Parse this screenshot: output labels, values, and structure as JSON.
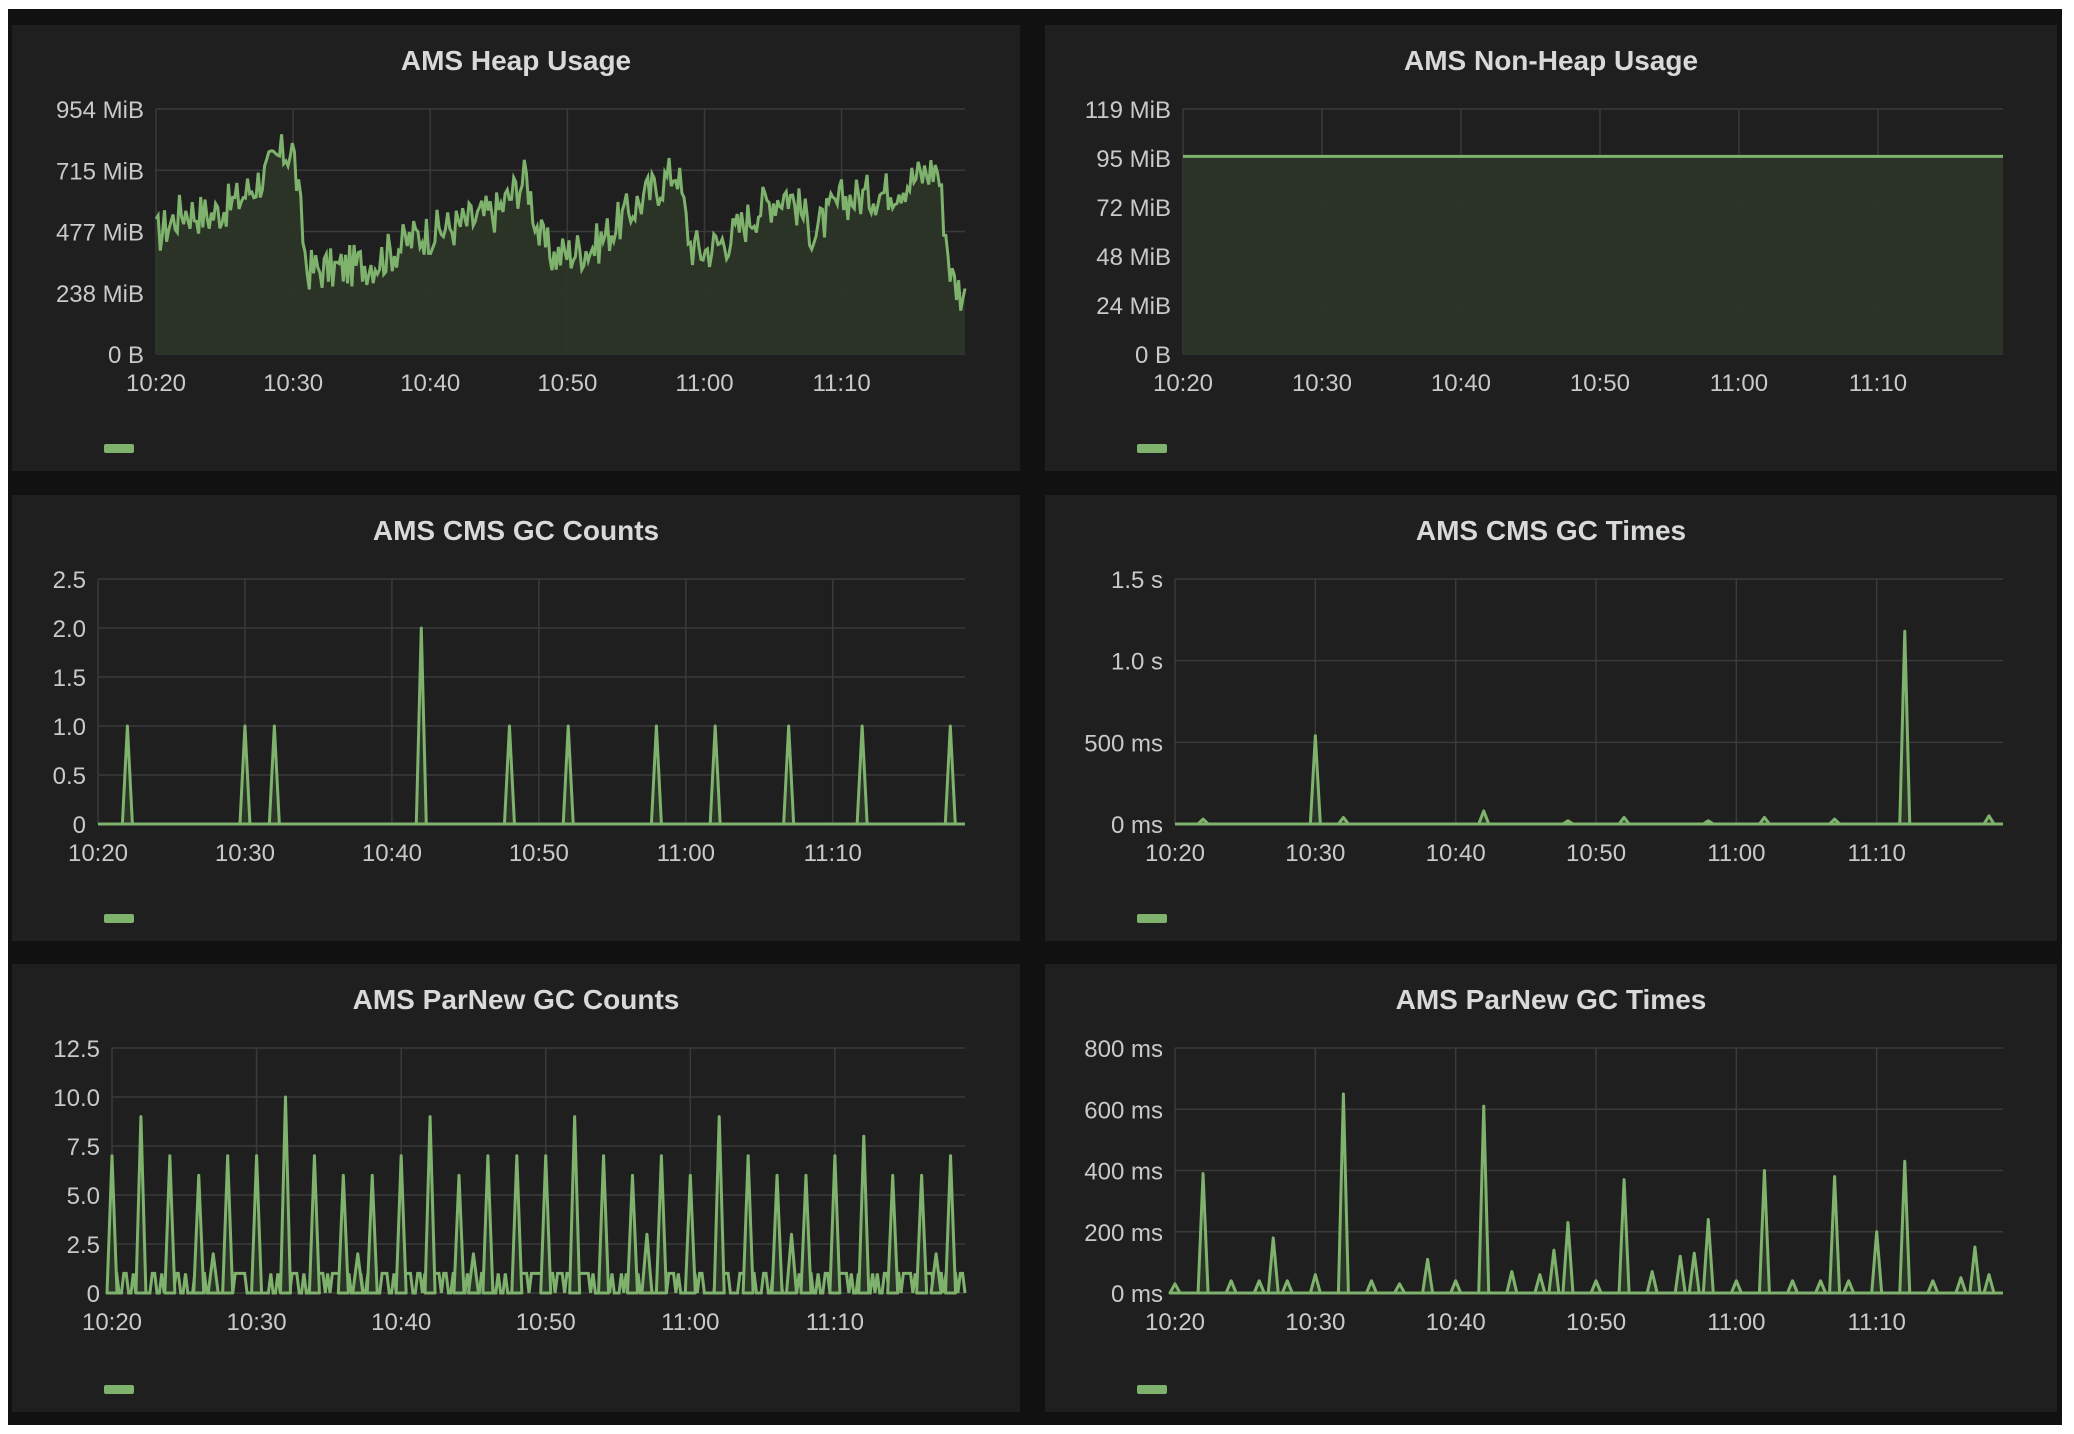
{
  "colors": {
    "background": "#111111",
    "panel": "#1f1f1f",
    "grid": "#3a3a3a",
    "text": "#d8d9da",
    "tick_text": "#c8c9ca",
    "series": "#7eb26d",
    "fill": "#2b3527"
  },
  "chart_data": [
    {
      "type": "area",
      "title": "AMS Heap Usage",
      "unit": "MiB",
      "x_ticks": [
        "10:20",
        "10:30",
        "10:40",
        "10:50",
        "11:00",
        "11:10"
      ],
      "x_range": [
        "10:20",
        "11:19"
      ],
      "y_ticks": [
        "0 B",
        "238 MiB",
        "477 MiB",
        "715 MiB",
        "954 MiB"
      ],
      "ylim": [
        0,
        954
      ],
      "grid": true,
      "legend": "bottom-left (unlabeled swatch)",
      "series": [
        {
          "x": [
            "10:20",
            "10:22",
            "10:24",
            "10:26",
            "10:28",
            "10:29",
            "10:30",
            "10:31",
            "10:33",
            "10:36",
            "10:39",
            "10:42",
            "10:45",
            "10:47",
            "10:48",
            "10:49",
            "10:52",
            "10:55",
            "10:58",
            "10:59",
            "11:00",
            "11:02",
            "11:04",
            "11:06",
            "11:07",
            "11:08",
            "11:10",
            "11:13",
            "11:16",
            "11:17",
            "11:18",
            "11:19"
          ],
          "values": [
            460,
            560,
            540,
            600,
            700,
            770,
            800,
            330,
            330,
            360,
            460,
            500,
            560,
            690,
            450,
            380,
            420,
            580,
            720,
            420,
            400,
            460,
            570,
            630,
            560,
            470,
            600,
            630,
            700,
            730,
            300,
            220
          ]
        }
      ]
    },
    {
      "type": "area",
      "title": "AMS Non-Heap Usage",
      "unit": "MiB",
      "x_ticks": [
        "10:20",
        "10:30",
        "10:40",
        "10:50",
        "11:00",
        "11:10"
      ],
      "x_range": [
        "10:20",
        "11:19"
      ],
      "y_ticks": [
        "0 B",
        "24 MiB",
        "48 MiB",
        "72 MiB",
        "95 MiB",
        "119 MiB"
      ],
      "ylim": [
        0,
        119
      ],
      "grid": true,
      "legend": "bottom-left (unlabeled swatch)",
      "series": [
        {
          "x": [
            "10:20",
            "11:19"
          ],
          "values": [
            96,
            96
          ]
        }
      ]
    },
    {
      "type": "line",
      "title": "AMS CMS GC Counts",
      "x_ticks": [
        "10:20",
        "10:30",
        "10:40",
        "10:50",
        "11:00",
        "11:10"
      ],
      "x_range": [
        "10:20",
        "11:19"
      ],
      "y_ticks": [
        "0",
        "0.5",
        "1.0",
        "1.5",
        "2.0",
        "2.5"
      ],
      "ylim": [
        0,
        2.5
      ],
      "grid": true,
      "legend": "bottom-left (unlabeled swatch)",
      "series": [
        {
          "spikes": [
            [
              "10:22",
              1
            ],
            [
              "10:30",
              1
            ],
            [
              "10:32",
              1
            ],
            [
              "10:42",
              2
            ],
            [
              "10:48",
              1
            ],
            [
              "10:52",
              1
            ],
            [
              "10:58",
              1
            ],
            [
              "11:02",
              1
            ],
            [
              "11:07",
              1
            ],
            [
              "11:12",
              1
            ],
            [
              "11:18",
              1
            ]
          ]
        }
      ]
    },
    {
      "type": "line",
      "title": "AMS CMS GC Times",
      "unit": "ms",
      "x_ticks": [
        "10:20",
        "10:30",
        "10:40",
        "10:50",
        "11:00",
        "11:10"
      ],
      "x_range": [
        "10:20",
        "11:19"
      ],
      "y_ticks": [
        "0 ms",
        "500 ms",
        "1.0 s",
        "1.5 s"
      ],
      "ylim": [
        0,
        1500
      ],
      "grid": true,
      "legend": "bottom-left (unlabeled swatch)",
      "series": [
        {
          "spikes": [
            [
              "10:22",
              30
            ],
            [
              "10:30",
              540
            ],
            [
              "10:32",
              40
            ],
            [
              "10:42",
              80
            ],
            [
              "10:48",
              20
            ],
            [
              "10:52",
              40
            ],
            [
              "10:58",
              20
            ],
            [
              "11:02",
              40
            ],
            [
              "11:07",
              30
            ],
            [
              "11:12",
              1180
            ],
            [
              "11:18",
              50
            ]
          ]
        }
      ]
    },
    {
      "type": "line",
      "title": "AMS ParNew GC Counts",
      "x_ticks": [
        "10:20",
        "10:30",
        "10:40",
        "10:50",
        "11:00",
        "11:10"
      ],
      "x_range": [
        "10:20",
        "11:19"
      ],
      "y_ticks": [
        "0",
        "2.5",
        "5.0",
        "7.5",
        "10.0",
        "12.5"
      ],
      "ylim": [
        0,
        12.5
      ],
      "grid": true,
      "legend": "bottom-left (unlabeled swatch)",
      "baseline_noise": [
        0,
        1
      ],
      "series": [
        {
          "spikes": [
            [
              "10:20",
              7
            ],
            [
              "10:22",
              9
            ],
            [
              "10:24",
              7
            ],
            [
              "10:26",
              6
            ],
            [
              "10:27",
              2
            ],
            [
              "10:28",
              7
            ],
            [
              "10:30",
              7
            ],
            [
              "10:32",
              10
            ],
            [
              "10:34",
              7
            ],
            [
              "10:36",
              6
            ],
            [
              "10:37",
              2
            ],
            [
              "10:38",
              6
            ],
            [
              "10:40",
              7
            ],
            [
              "10:42",
              9
            ],
            [
              "10:44",
              6
            ],
            [
              "10:45",
              2
            ],
            [
              "10:46",
              7
            ],
            [
              "10:48",
              7
            ],
            [
              "10:50",
              7
            ],
            [
              "10:52",
              9
            ],
            [
              "10:54",
              7
            ],
            [
              "10:56",
              6
            ],
            [
              "10:57",
              3
            ],
            [
              "10:58",
              7
            ],
            [
              "11:00",
              6
            ],
            [
              "11:02",
              9
            ],
            [
              "11:04",
              7
            ],
            [
              "11:06",
              6
            ],
            [
              "11:07",
              3
            ],
            [
              "11:08",
              6
            ],
            [
              "11:10",
              7
            ],
            [
              "11:12",
              8
            ],
            [
              "11:14",
              6
            ],
            [
              "11:16",
              6
            ],
            [
              "11:17",
              2
            ],
            [
              "11:18",
              7
            ]
          ]
        }
      ]
    },
    {
      "type": "line",
      "title": "AMS ParNew GC Times",
      "unit": "ms",
      "x_ticks": [
        "10:20",
        "10:30",
        "10:40",
        "10:50",
        "11:00",
        "11:10"
      ],
      "x_range": [
        "10:20",
        "11:19"
      ],
      "y_ticks": [
        "0 ms",
        "200 ms",
        "400 ms",
        "600 ms",
        "800 ms"
      ],
      "ylim": [
        0,
        800
      ],
      "grid": true,
      "legend": "bottom-left (unlabeled swatch)",
      "series": [
        {
          "spikes": [
            [
              "10:20",
              30
            ],
            [
              "10:22",
              390
            ],
            [
              "10:24",
              40
            ],
            [
              "10:26",
              40
            ],
            [
              "10:27",
              180
            ],
            [
              "10:28",
              40
            ],
            [
              "10:30",
              60
            ],
            [
              "10:32",
              650
            ],
            [
              "10:34",
              40
            ],
            [
              "10:36",
              30
            ],
            [
              "10:38",
              110
            ],
            [
              "10:40",
              40
            ],
            [
              "10:42",
              610
            ],
            [
              "10:44",
              70
            ],
            [
              "10:46",
              60
            ],
            [
              "10:47",
              140
            ],
            [
              "10:48",
              230
            ],
            [
              "10:50",
              40
            ],
            [
              "10:52",
              370
            ],
            [
              "10:54",
              70
            ],
            [
              "10:56",
              120
            ],
            [
              "10:57",
              130
            ],
            [
              "10:58",
              240
            ],
            [
              "11:00",
              40
            ],
            [
              "11:02",
              400
            ],
            [
              "11:04",
              40
            ],
            [
              "11:06",
              40
            ],
            [
              "11:07",
              380
            ],
            [
              "11:08",
              40
            ],
            [
              "11:10",
              200
            ],
            [
              "11:12",
              430
            ],
            [
              "11:14",
              40
            ],
            [
              "11:16",
              50
            ],
            [
              "11:17",
              150
            ],
            [
              "11:18",
              60
            ]
          ]
        }
      ]
    }
  ]
}
